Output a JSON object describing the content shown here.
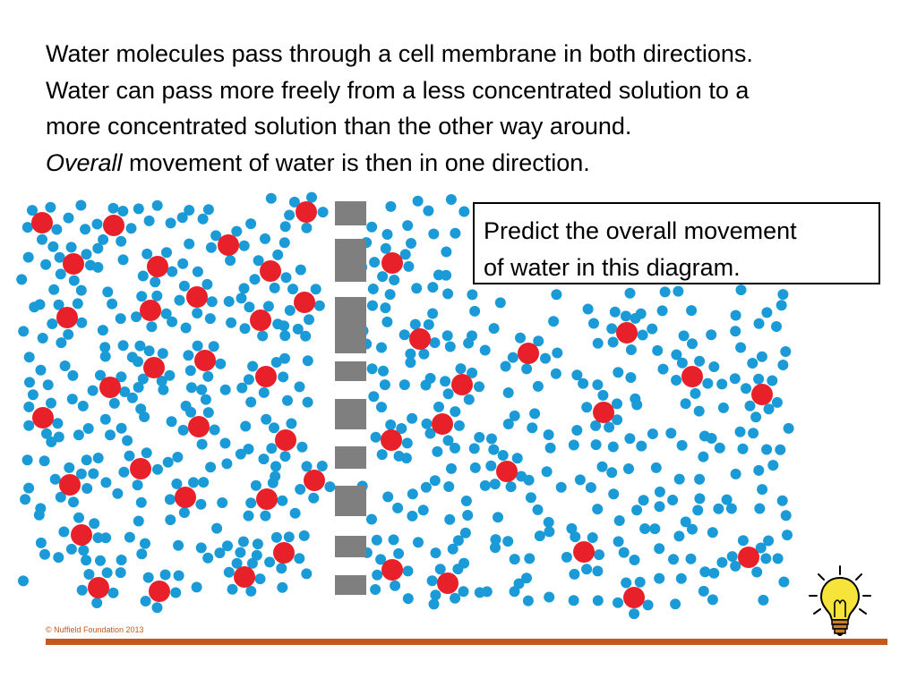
{
  "heading": {
    "line1": "Water molecules pass through a cell membrane in both directions.",
    "line2": "Water can pass more freely from a less concentrated solution to a",
    "line3": "more concentrated solution than the other way around.",
    "line4_italic": "Overall",
    "line4_rest": " movement of water is then in one direction."
  },
  "callout": {
    "line1": "Predict the overall movement",
    "line2": "of water in this diagram."
  },
  "footer": {
    "copyright": "© Nuffield Foundation 2013"
  },
  "colors": {
    "water": "#1a9ad6",
    "solute": "#e8202a",
    "membrane": "#7f7f7f",
    "accent": "#c25a1e",
    "bulb": "#f6e43a"
  },
  "icons": [
    "lightbulb-icon"
  ]
}
